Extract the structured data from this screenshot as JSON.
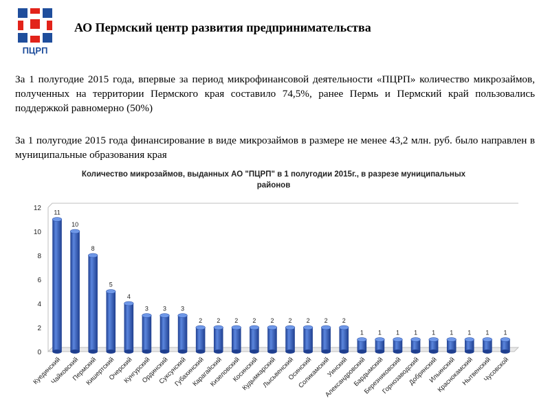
{
  "header": {
    "logo_text": "ПЦРП",
    "title": "АО Пермский центр развития предпринимательства"
  },
  "paragraphs": {
    "p1": "За 1 полугодие 2015 года, впервые за период микрофинансовой деятельности «ПЦРП» количество микрозаймов, полученных на территории Пермского края составило 74,5%, ранее Пермь и Пермский край пользовались поддержкой равномерно (50%)",
    "p2": "За 1 полугодие 2015 года финансирование в виде микрозаймов в размере не менее 43,2 млн. руб. было направлен в муниципальные  образования края"
  },
  "colors": {
    "logo_blue": "#1f4e9c",
    "logo_red": "#e2231a",
    "bar_blue": "#3a67c8"
  },
  "chart_data": {
    "type": "bar",
    "title": "Количество микрозаймов, выданных АО \"ПЦРП\" в 1 полугодии 2015г., в разрезе муниципальных районов",
    "title_lines": [
      "Количество микрозаймов, выданных АО \"ПЦРП\" в 1 полугодии 2015г., в разрезе муниципальных",
      "районов"
    ],
    "xlabel": "",
    "ylabel": "",
    "ylim": [
      0,
      12
    ],
    "yticks": [
      0,
      2,
      4,
      6,
      8,
      10,
      12
    ],
    "grid": false,
    "style": "3d-cylinder",
    "categories": [
      "Куединский",
      "Чайковский",
      "Пермский",
      "Кишертский",
      "Очерский",
      "Кунгурский",
      "Ординский",
      "Суксунский",
      "Губахинский",
      "Карагайский",
      "Кизеловский",
      "Косинский",
      "Кудымкарский",
      "Лысьвенский",
      "Осинский",
      "Соликамский",
      "Уинский",
      "Александровский",
      "Бардымский",
      "Березниковский",
      "Горнозаводский",
      "Добрянский",
      "Ильинский",
      "Краснокамский",
      "Нытвенский",
      "Чусовской"
    ],
    "values": [
      11,
      10,
      8,
      5,
      4,
      3,
      3,
      3,
      2,
      2,
      2,
      2,
      2,
      2,
      2,
      2,
      2,
      1,
      1,
      1,
      1,
      1,
      1,
      1,
      1,
      1
    ]
  }
}
